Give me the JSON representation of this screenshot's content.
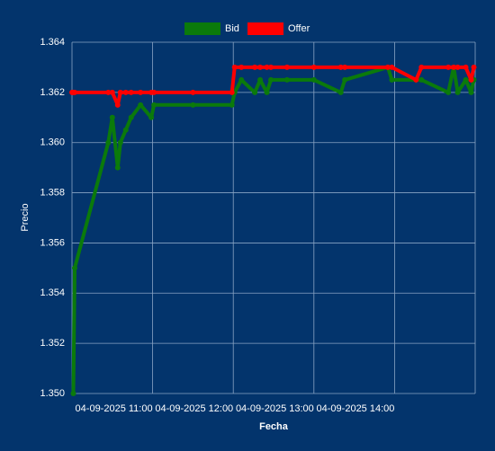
{
  "chart_data": {
    "type": "line",
    "x_label": "Fecha",
    "y_label": "Precio",
    "x": [
      "04-09-2025 10:00",
      "04-09-2025 10:01",
      "04-09-2025 10:02",
      "04-09-2025 10:27",
      "04-09-2025 10:30",
      "04-09-2025 10:34",
      "04-09-2025 10:36",
      "04-09-2025 10:40",
      "04-09-2025 10:44",
      "04-09-2025 10:51",
      "04-09-2025 10:59",
      "04-09-2025 11:01",
      "04-09-2025 11:30",
      "04-09-2025 11:59",
      "04-09-2025 12:01",
      "04-09-2025 12:06",
      "04-09-2025 12:16",
      "04-09-2025 12:20",
      "04-09-2025 12:25",
      "04-09-2025 12:28",
      "04-09-2025 12:40",
      "04-09-2025 13:00",
      "04-09-2025 13:20",
      "04-09-2025 13:23",
      "04-09-2025 13:55",
      "04-09-2025 13:58",
      "04-09-2025 14:16",
      "04-09-2025 14:20",
      "04-09-2025 14:40",
      "04-09-2025 14:44",
      "04-09-2025 14:47",
      "04-09-2025 14:53",
      "04-09-2025 14:57",
      "04-09-2025 14:59"
    ],
    "series": [
      {
        "name": "Bid",
        "color": "#0b7a0b",
        "values": [
          null,
          1.35,
          1.355,
          1.36,
          1.361,
          1.359,
          1.36,
          1.3605,
          1.361,
          1.3615,
          1.361,
          1.3615,
          1.3615,
          1.3615,
          1.362,
          1.3625,
          1.362,
          1.3625,
          1.362,
          1.3625,
          1.3625,
          1.3625,
          1.362,
          1.3625,
          1.363,
          1.3625,
          1.3625,
          1.3625,
          1.362,
          1.363,
          1.362,
          1.3625,
          1.362,
          1.3625
        ]
      },
      {
        "name": "Offer",
        "color": "#ff0000",
        "values": [
          1.362,
          1.362,
          1.362,
          1.362,
          1.362,
          1.3615,
          1.362,
          1.362,
          1.362,
          1.362,
          1.362,
          1.362,
          1.362,
          1.362,
          1.363,
          1.363,
          1.363,
          1.363,
          1.363,
          1.363,
          1.363,
          1.363,
          1.363,
          1.363,
          1.363,
          1.363,
          1.3625,
          1.363,
          1.363,
          1.363,
          1.363,
          1.363,
          1.3625,
          1.363
        ]
      }
    ],
    "xlim": [
      "04-09-2025 10:00",
      "04-09-2025 15:00"
    ],
    "xticks": [
      "04-09-2025 11:00",
      "04-09-2025 12:00",
      "04-09-2025 13:00",
      "04-09-2025 14:00"
    ],
    "ylim": [
      1.35,
      1.364
    ],
    "yticks": [
      {
        "value": 1.35,
        "label": "1.350"
      },
      1.352,
      1.354,
      1.356,
      1.358,
      {
        "value": 1.36,
        "label": "1.360"
      },
      1.362,
      1.364
    ],
    "grid": true
  }
}
